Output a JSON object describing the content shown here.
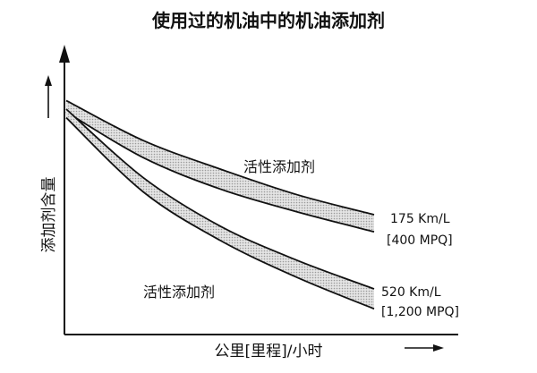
{
  "chart_data": {
    "type": "line",
    "title": "使用过的机油中的机油添加剂",
    "xlabel": "公里[里程]/小时",
    "ylabel": "添加剂含量",
    "x": [
      0,
      25,
      50,
      75,
      100
    ],
    "bands": [
      {
        "label": "活性添加剂",
        "end_label": [
          "175 Km/L",
          "[400 MPQ]"
        ],
        "upper": [
          82,
          68,
          58,
          49,
          42
        ],
        "lower": [
          78,
          62,
          51,
          43,
          36
        ]
      },
      {
        "label": "活性添加剂",
        "end_label": [
          "520 Km/L",
          "[1,200 MPQ]"
        ],
        "upper": [
          79,
          55,
          38,
          26,
          16
        ],
        "lower": [
          76,
          50,
          33,
          20,
          9
        ]
      }
    ],
    "xlim": [
      0,
      100
    ],
    "ylim": [
      0,
      100
    ],
    "grid": false,
    "band_fill": "#c8c8c8",
    "line_color": "#111111"
  }
}
